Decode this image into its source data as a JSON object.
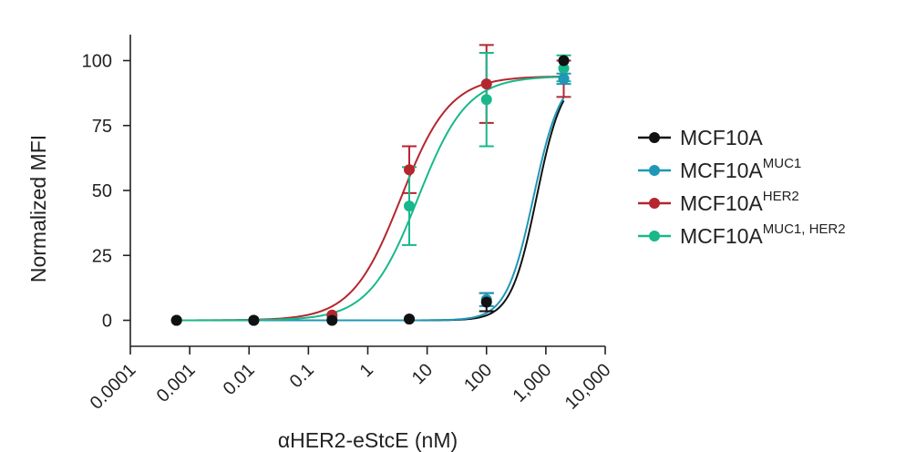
{
  "chart_data": {
    "type": "scatter",
    "xlabel": "αHER2-eStcE (nM)",
    "ylabel": "Normalized MFI",
    "x_scale": "log",
    "xlim": [
      0.0001,
      10000
    ],
    "ylim": [
      -10,
      110
    ],
    "x_ticks": [
      0.0001,
      0.001,
      0.01,
      0.1,
      1,
      10,
      100,
      1000,
      10000
    ],
    "x_tick_labels": [
      "0.0001",
      "0.001",
      "0.01",
      "0.1",
      "1",
      "10",
      "100",
      "1,000",
      "10,000"
    ],
    "y_ticks": [
      0,
      25,
      50,
      75,
      100
    ],
    "y_tick_labels": [
      "0",
      "25",
      "50",
      "75",
      "100"
    ],
    "grid": false,
    "legend_position": "right",
    "series": [
      {
        "name": "MCF10A",
        "name_sup": "",
        "color": "#111111",
        "x": [
          0.0006,
          0.012,
          0.25,
          5,
          100,
          2000
        ],
        "y": [
          0,
          0,
          0,
          0.5,
          7,
          100
        ],
        "err": [
          0,
          0,
          0,
          0,
          3.5,
          0
        ],
        "fit": {
          "bottom": 0,
          "top": 95,
          "ec50": 700,
          "hill": 2.0
        }
      },
      {
        "name": "MCF10A",
        "name_sup": "MUC1",
        "color": "#1f97b8",
        "x": [
          0.0006,
          0.012,
          0.25,
          5,
          100,
          2000
        ],
        "y": [
          0,
          0,
          0,
          0.5,
          8,
          93
        ],
        "err": [
          0,
          0,
          0,
          0,
          2.5,
          2
        ],
        "fit": {
          "bottom": 0,
          "top": 95,
          "ec50": 620,
          "hill": 1.9
        }
      },
      {
        "name": "MCF10A",
        "name_sup": "HER2",
        "color": "#b5262f",
        "x": [
          0.0006,
          0.012,
          0.25,
          5,
          100,
          2000
        ],
        "y": [
          0,
          0,
          2,
          58,
          91,
          93
        ],
        "err": [
          0,
          0,
          0,
          9,
          15,
          7
        ],
        "fit": {
          "bottom": 0,
          "top": 94,
          "ec50": 3.6,
          "hill": 1.05
        }
      },
      {
        "name": "MCF10A",
        "name_sup": "MUC1, HER2",
        "color": "#18b88a",
        "x": [
          0.0006,
          0.012,
          0.25,
          5,
          100,
          2000
        ],
        "y": [
          0,
          0,
          1.5,
          44,
          85,
          97
        ],
        "err": [
          0,
          0,
          0,
          15,
          18,
          5
        ],
        "fit": {
          "bottom": 0,
          "top": 94,
          "ec50": 7,
          "hill": 1.05
        }
      }
    ]
  }
}
